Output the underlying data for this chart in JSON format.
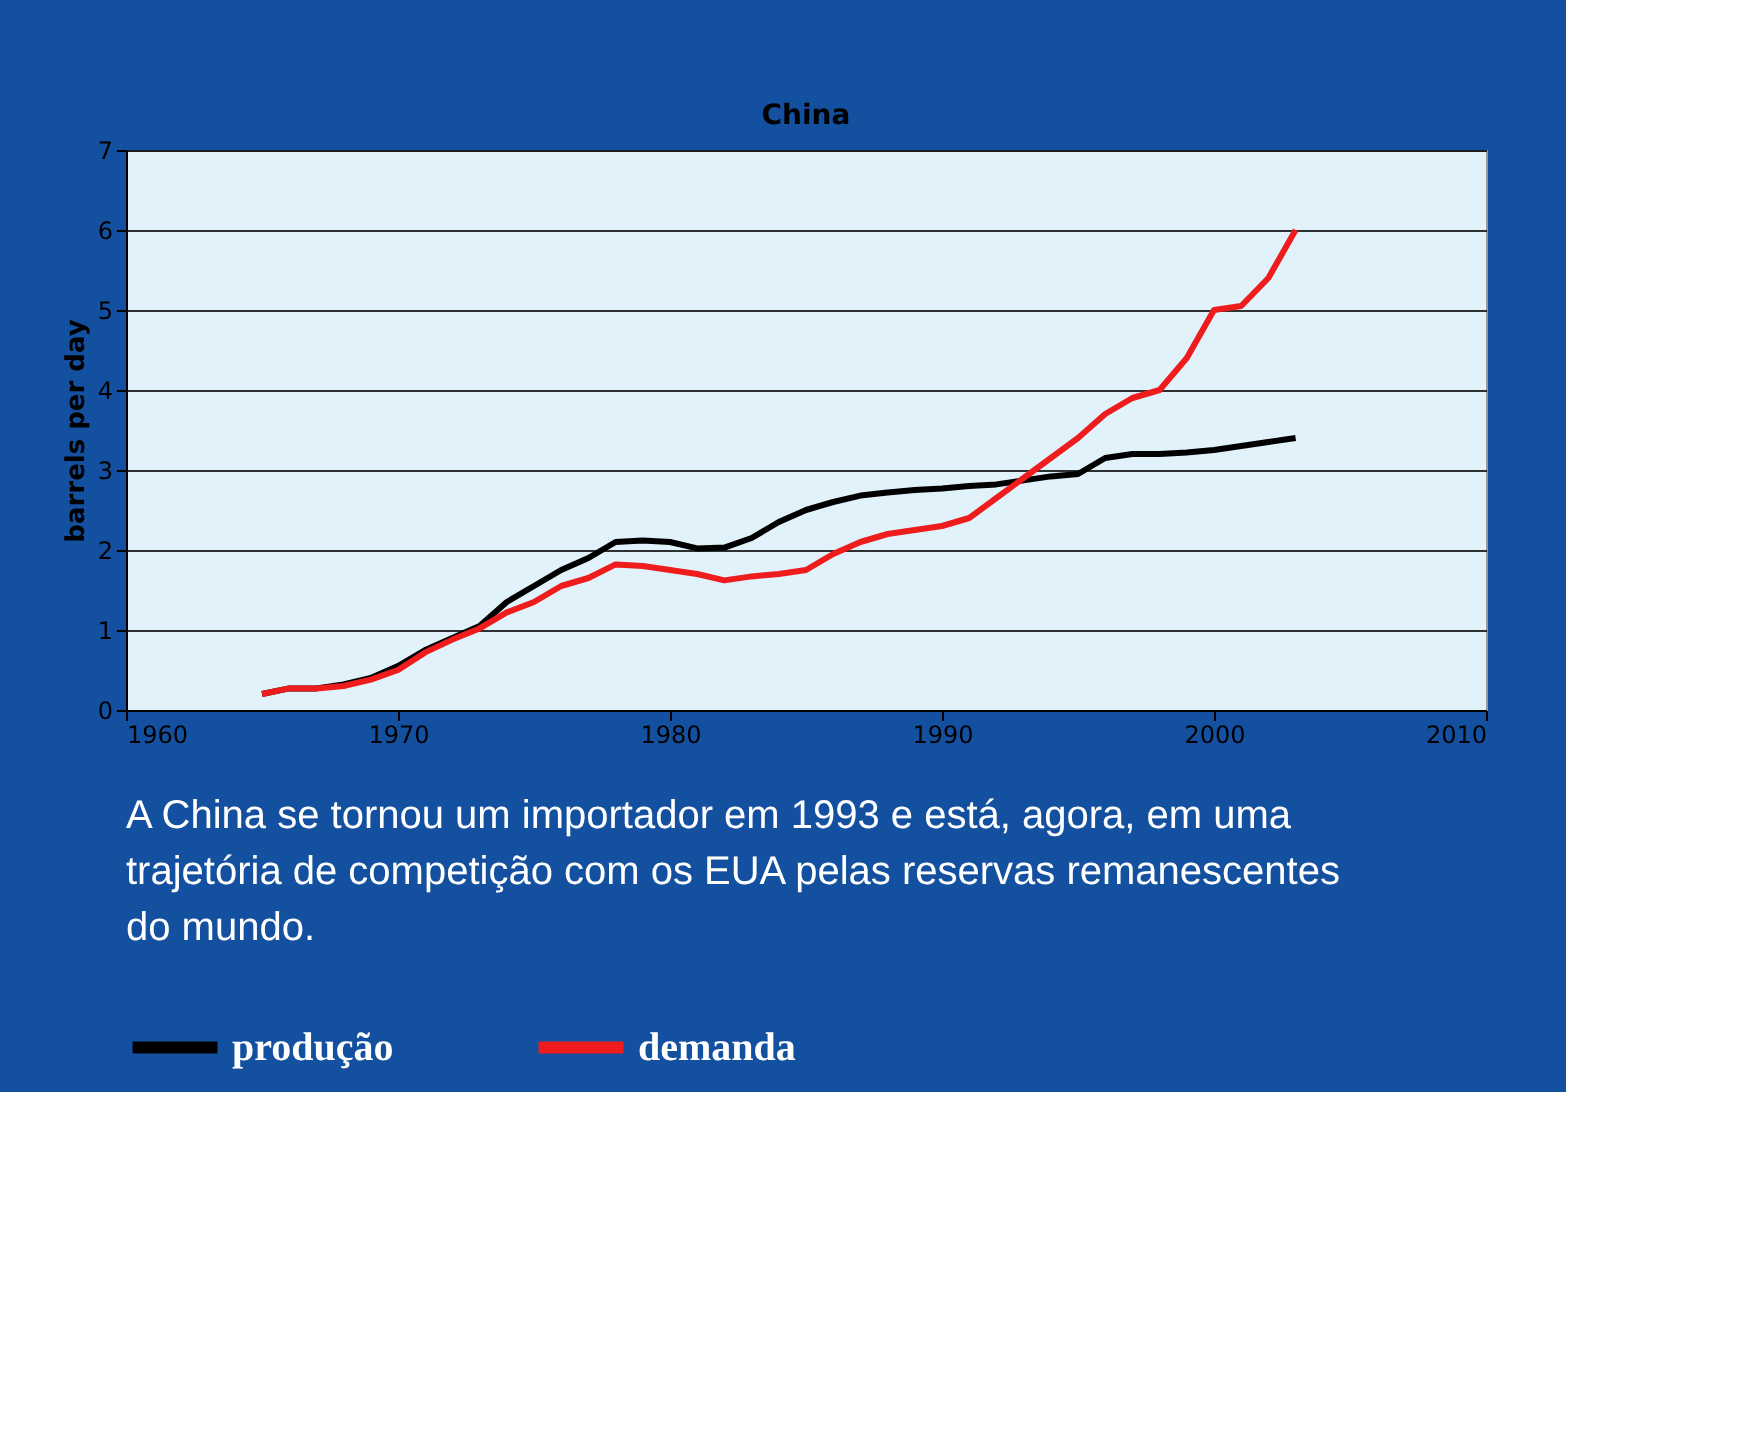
{
  "chart_data": {
    "type": "line",
    "title": "China",
    "ylabel": "barrels per day",
    "x": [
      1965,
      1966,
      1967,
      1968,
      1969,
      1970,
      1971,
      1972,
      1973,
      1974,
      1975,
      1976,
      1977,
      1978,
      1979,
      1980,
      1981,
      1982,
      1983,
      1984,
      1985,
      1986,
      1987,
      1988,
      1989,
      1990,
      1991,
      1992,
      1993,
      1994,
      1995,
      1996,
      1997,
      1998,
      1999,
      2000,
      2001,
      2002,
      2003
    ],
    "series": [
      {
        "name": "produção",
        "color": "#000000",
        "values": [
          0.2,
          0.27,
          0.27,
          0.32,
          0.4,
          0.55,
          0.75,
          0.9,
          1.05,
          1.35,
          1.55,
          1.75,
          1.9,
          2.1,
          2.12,
          2.1,
          2.02,
          2.03,
          2.15,
          2.35,
          2.5,
          2.6,
          2.68,
          2.72,
          2.75,
          2.77,
          2.8,
          2.82,
          2.87,
          2.92,
          2.95,
          3.15,
          3.2,
          3.2,
          3.22,
          3.25,
          3.3,
          3.35,
          3.4
        ]
      },
      {
        "name": "demanda",
        "color": "#ee1c1c",
        "values": [
          0.2,
          0.27,
          0.27,
          0.3,
          0.38,
          0.5,
          0.72,
          0.88,
          1.02,
          1.22,
          1.35,
          1.55,
          1.65,
          1.82,
          1.8,
          1.75,
          1.7,
          1.62,
          1.67,
          1.7,
          1.75,
          1.95,
          2.1,
          2.2,
          2.25,
          2.3,
          2.4,
          2.65,
          2.9,
          3.15,
          3.4,
          3.7,
          3.9,
          4.0,
          4.4,
          5.0,
          5.05,
          5.4,
          6.0
        ]
      }
    ],
    "xlim": [
      1960,
      2010
    ],
    "xticks": [
      1960,
      1970,
      1980,
      1990,
      2000,
      2010
    ],
    "ylim": [
      0,
      7
    ],
    "yticks": [
      0,
      1,
      2,
      3,
      4,
      5,
      6,
      7
    ],
    "grid": "y",
    "legend": "bottom",
    "marker": "none",
    "line_style": "solid",
    "annotations": [
      "A China se tornou um importador em 1993 e está, agora, em uma trajetória de competição com os EUA pelas reservas remanescentes do mundo."
    ]
  }
}
